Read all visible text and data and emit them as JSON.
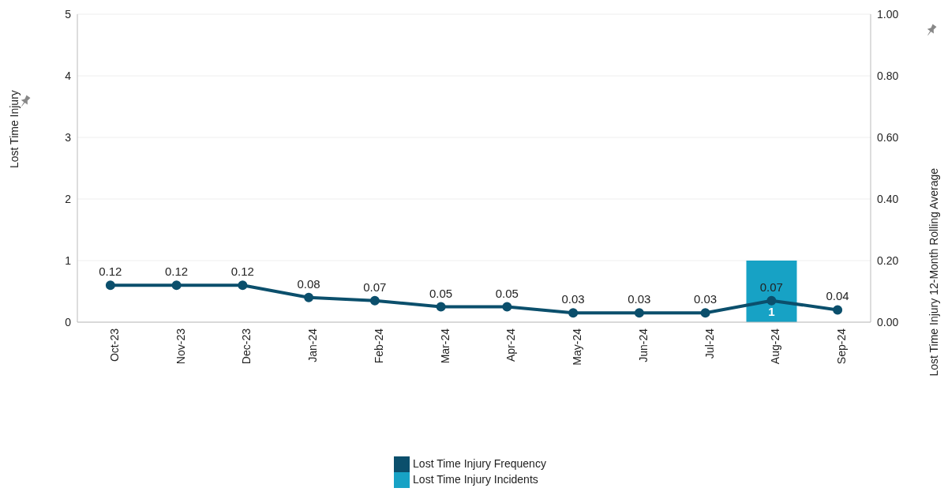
{
  "chart_data": {
    "type": "bar",
    "categories": [
      "Oct-23",
      "Nov-23",
      "Dec-23",
      "Jan-24",
      "Feb-24",
      "Mar-24",
      "Apr-24",
      "May-24",
      "Jun-24",
      "Jul-24",
      "Aug-24",
      "Sep-24"
    ],
    "series": [
      {
        "name": "Lost Time Injury Frequency",
        "type": "line",
        "axis": "y2",
        "color": "#0b4f6c",
        "values": [
          0.12,
          0.12,
          0.12,
          0.08,
          0.07,
          0.05,
          0.05,
          0.03,
          0.03,
          0.03,
          0.07,
          0.04
        ],
        "data_labels": true,
        "marker": "circle"
      },
      {
        "name": "Lost Time Injury Incidents",
        "color": "#17a2c5",
        "values": [
          0,
          0,
          0,
          0,
          0,
          0,
          0,
          0,
          0,
          0,
          1,
          0
        ],
        "value_labels": [
          null,
          null,
          null,
          null,
          null,
          null,
          null,
          null,
          null,
          null,
          "1",
          null
        ]
      }
    ],
    "ylabel": "Lost Time Injury",
    "y2label": "Lost Time Injury 12-Month Rolling Average",
    "ylim": [
      0,
      5
    ],
    "yticks": [
      0,
      1,
      2,
      3,
      4,
      5
    ],
    "y2lim": [
      0,
      1
    ],
    "y2ticks": [
      {
        "value": 0,
        "label": "0.00"
      },
      {
        "value": 0.2,
        "label": "0.20"
      },
      {
        "value": 0.4,
        "label": "0.40"
      },
      {
        "value": 0.6,
        "label": "0.60"
      },
      {
        "value": 0.8,
        "label": "0.80"
      },
      {
        "value": 1,
        "label": "1.00"
      }
    ],
    "grid": "y",
    "legend": "bottom"
  }
}
